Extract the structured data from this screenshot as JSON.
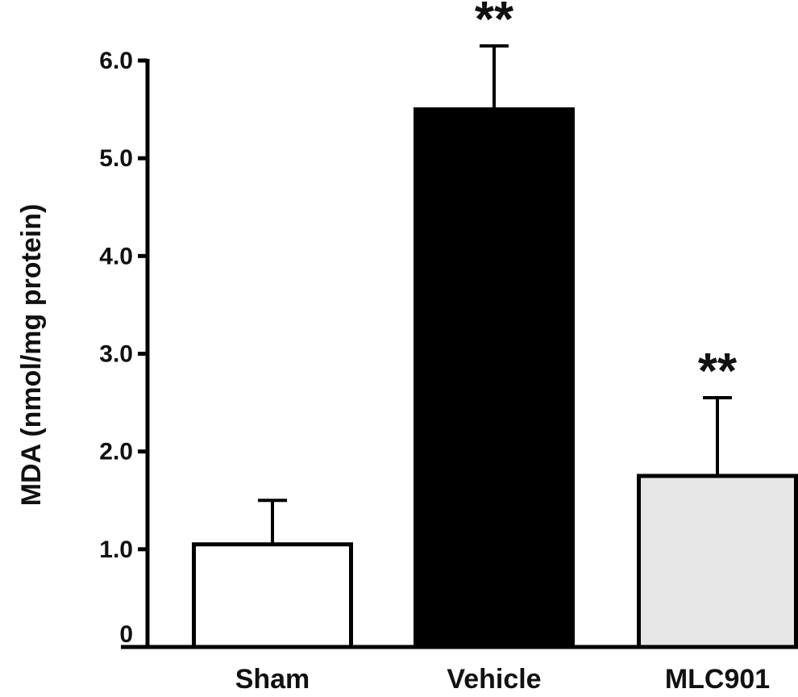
{
  "chart_data": {
    "type": "bar",
    "categories": [
      "Sham",
      "Vehicle",
      "MLC901"
    ],
    "values": [
      1.05,
      5.5,
      1.75
    ],
    "errors": [
      0.45,
      0.65,
      0.8
    ],
    "annotations": [
      "",
      "**",
      "**"
    ],
    "bar_colors": [
      "#ffffff",
      "#000000",
      "#e6e6e6"
    ],
    "ylabel": "MDA (nmol/mg protein)",
    "xlabel": "",
    "ylim": [
      0,
      6.0
    ],
    "yticks": [
      0,
      1.0,
      2.0,
      3.0,
      4.0,
      5.0,
      6.0
    ],
    "ytick_labels": [
      "0",
      "1.0",
      "2.0",
      "3.0",
      "4.0",
      "5.0",
      "6.0"
    ],
    "grid": false,
    "legend": "none"
  }
}
